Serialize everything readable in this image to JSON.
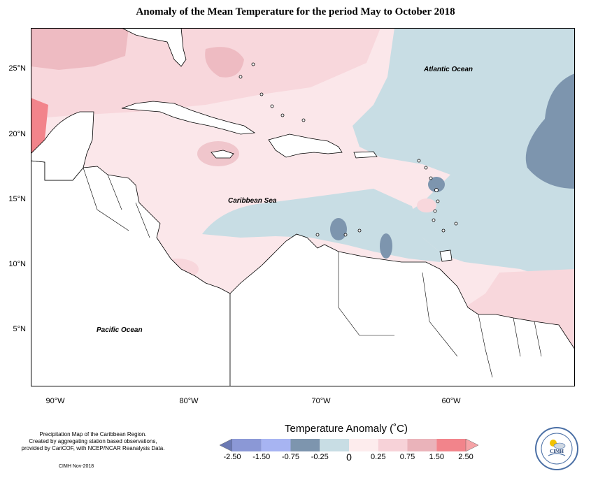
{
  "title": "Anomaly of the Mean Temperature for the period May to October 2018",
  "axes": {
    "lat_labels": [
      "25°N",
      "20°N",
      "15°N",
      "10°N",
      "5°N"
    ],
    "lon_labels": [
      "90°W",
      "80°W",
      "70°W",
      "60°W"
    ]
  },
  "labels": {
    "atlantic": "Atlantic Ocean",
    "caribbean": "Caribbean Sea",
    "pacific": "Pacific Ocean"
  },
  "notes": {
    "line1": "Precipitation Map of the Caribbean Region.",
    "line2": "Created by aggregating station based observations,",
    "line3": "provided by CariCOF, with NCEP/NCAR Reanalysis Data.",
    "credit": "CIMH Nov-2018"
  },
  "legend": {
    "title": "Temperature Anomaly (˚C)",
    "ticks": [
      "-2.50",
      "-1.50",
      "-0.75",
      "-0.25",
      "0",
      "0.25",
      "0.75",
      "1.50",
      "2.50"
    ],
    "colors": [
      "#6b79b3",
      "#8b98d6",
      "#a7b4f2",
      "#7d95ae",
      "#c8dde4",
      "#fdeced",
      "#f7d2d8",
      "#eab3ba",
      "#f2848b",
      "#f6a3a7"
    ]
  },
  "logo": {
    "text": "CIMH",
    "icon": "sun-cloud-icon"
  }
}
